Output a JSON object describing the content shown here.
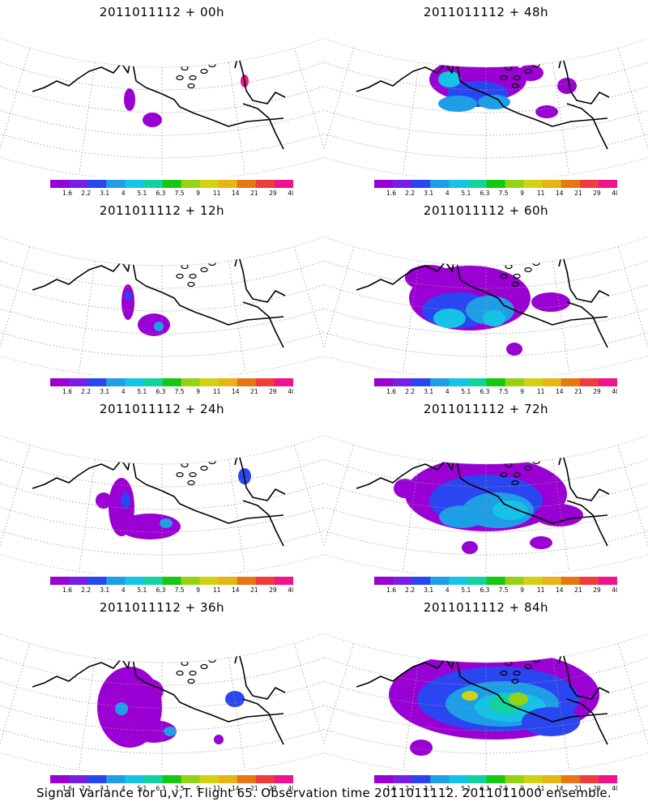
{
  "panels": [
    {
      "title": "2011011112 + 00h",
      "lead_hours": 0
    },
    {
      "title": "2011011112 + 48h",
      "lead_hours": 48
    },
    {
      "title": "2011011112 + 12h",
      "lead_hours": 12
    },
    {
      "title": "2011011112 + 60h",
      "lead_hours": 60
    },
    {
      "title": "2011011112 + 24h",
      "lead_hours": 24
    },
    {
      "title": "2011011112 + 72h",
      "lead_hours": 72
    },
    {
      "title": "2011011112 + 36h",
      "lead_hours": 36
    },
    {
      "title": "2011011112 + 84h",
      "lead_hours": 84
    }
  ],
  "colorbar": {
    "labels": [
      "1.6",
      "2.2",
      "3.1",
      "4",
      "5.1",
      "6.3",
      "7.5",
      "9",
      "11",
      "14",
      "21",
      "29",
      "40"
    ],
    "colors": [
      "#9a00d4",
      "#7a1ee6",
      "#2a46f0",
      "#1e9ee6",
      "#14c3e6",
      "#14d2a0",
      "#14c814",
      "#96d214",
      "#d2d214",
      "#e6b414",
      "#e67814",
      "#f03c3c",
      "#f0148c"
    ]
  },
  "footer": "Signal Variance for u,v,T. Flight 65. Observation time 2011011112. 2011011000 ensemble."
}
